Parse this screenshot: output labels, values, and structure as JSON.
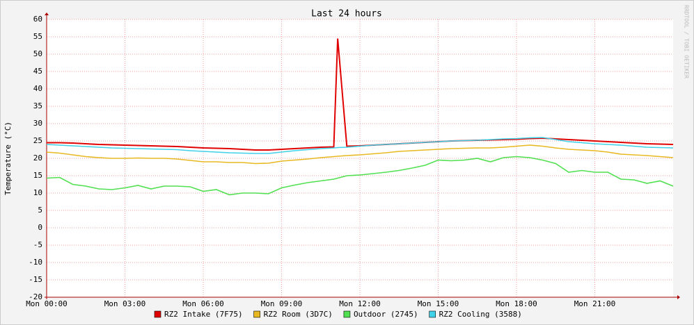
{
  "chart_data": {
    "type": "line",
    "title": "Last 24 hours",
    "ylabel": "Temperature (°C)",
    "watermark": "RRDTOOL / TOBI OETIKER",
    "x": [
      0,
      0.5,
      1,
      1.5,
      2,
      2.5,
      3,
      3.5,
      4,
      4.5,
      5,
      5.5,
      6,
      6.5,
      7,
      7.5,
      8,
      8.5,
      9,
      9.5,
      10,
      10.5,
      11,
      11.15,
      11.5,
      12,
      12.5,
      13,
      13.5,
      14,
      14.5,
      15,
      15.5,
      16,
      16.5,
      17,
      17.5,
      18,
      18.5,
      19,
      19.5,
      20,
      20.5,
      21,
      21.5,
      22,
      22.5,
      23,
      23.5,
      24
    ],
    "xlim": [
      0,
      24
    ],
    "xticks": [
      {
        "value": 0,
        "label": "Mon 00:00"
      },
      {
        "value": 3,
        "label": "Mon 03:00"
      },
      {
        "value": 6,
        "label": "Mon 06:00"
      },
      {
        "value": 9,
        "label": "Mon 09:00"
      },
      {
        "value": 12,
        "label": "Mon 12:00"
      },
      {
        "value": 15,
        "label": "Mon 15:00"
      },
      {
        "value": 18,
        "label": "Mon 18:00"
      },
      {
        "value": 21,
        "label": "Mon 21:00"
      }
    ],
    "ylim": [
      -20,
      60
    ],
    "yticks": [
      -20,
      -15,
      -10,
      -5,
      0,
      5,
      10,
      15,
      20,
      25,
      30,
      35,
      40,
      45,
      50,
      55,
      60
    ],
    "grid": true,
    "series": [
      {
        "name": "RZ2 Intake (7F75)",
        "color": "#e00000",
        "values": [
          24.5,
          24.5,
          24.4,
          24.2,
          24,
          23.9,
          23.8,
          23.7,
          23.6,
          23.5,
          23.4,
          23.2,
          23,
          22.9,
          22.8,
          22.6,
          22.4,
          22.4,
          22.6,
          22.8,
          23,
          23.2,
          23.3,
          54.5,
          23.5,
          23.6,
          23.8,
          24,
          24.2,
          24.4,
          24.6,
          24.8,
          25,
          25.1,
          25.2,
          25.3,
          25.4,
          25.5,
          25.7,
          25.8,
          25.6,
          25.4,
          25.2,
          25,
          24.8,
          24.6,
          24.4,
          24.2,
          24.1,
          24
        ]
      },
      {
        "name": "RZ2 Room (3D7C)",
        "color": "#e8b820",
        "values": [
          21.8,
          21.5,
          21,
          20.5,
          20.2,
          20,
          20,
          20.1,
          20,
          20,
          19.8,
          19.4,
          19,
          19,
          18.8,
          18.8,
          18.5,
          18.6,
          19.2,
          19.5,
          19.8,
          20.2,
          20.5,
          20.6,
          20.8,
          21,
          21.3,
          21.6,
          22,
          22.2,
          22.4,
          22.6,
          22.8,
          22.9,
          23,
          23,
          23.2,
          23.5,
          23.8,
          23.5,
          23,
          22.6,
          22.4,
          22.2,
          21.8,
          21.2,
          21,
          20.8,
          20.5,
          20.2
        ]
      },
      {
        "name": "Outdoor (2745)",
        "color": "#50e050",
        "values": [
          14.3,
          14.5,
          12.5,
          12,
          11.2,
          11,
          11.5,
          12.2,
          11.2,
          12,
          12,
          11.8,
          10.5,
          11,
          9.5,
          10,
          10,
          9.8,
          11.5,
          12.3,
          13,
          13.5,
          14,
          14.3,
          15,
          15.2,
          15.6,
          16,
          16.5,
          17.2,
          18,
          19.5,
          19.3,
          19.5,
          20,
          19,
          20.2,
          20.5,
          20.2,
          19.5,
          18.5,
          16,
          16.5,
          16,
          16,
          14,
          13.8,
          12.8,
          13.5,
          12
        ]
      },
      {
        "name": "RZ2 Cooling (3588)",
        "color": "#40d0e8",
        "values": [
          24,
          23.8,
          23.6,
          23.4,
          23.2,
          23,
          22.9,
          22.8,
          22.7,
          22.6,
          22.5,
          22.2,
          22,
          21.8,
          21.6,
          21.5,
          21.4,
          21.4,
          21.8,
          22.2,
          22.5,
          22.8,
          23,
          23.1,
          23.2,
          23.5,
          23.8,
          24,
          24.2,
          24.4,
          24.6,
          24.8,
          25,
          25.1,
          25.2,
          25.4,
          25.6,
          25.7,
          25.9,
          26,
          25.4,
          24.8,
          24.5,
          24.2,
          24,
          23.8,
          23.5,
          23.2,
          23.1,
          23
        ]
      }
    ]
  }
}
